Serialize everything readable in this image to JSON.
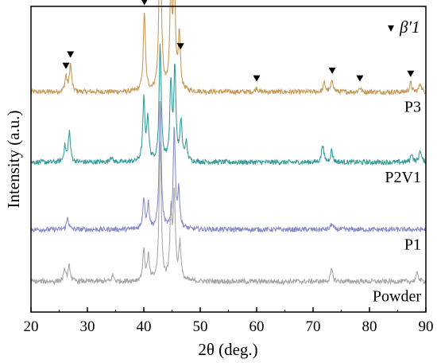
{
  "chart_data": {
    "type": "line",
    "xlabel": "2θ (deg.)",
    "ylabel": "Intensity (a.u.)",
    "xlim": [
      20,
      90
    ],
    "x_ticks": [
      20,
      30,
      40,
      50,
      60,
      70,
      80,
      90
    ],
    "y_ticks_shown": false,
    "grid": false,
    "legend": {
      "placement": "top-right",
      "marker": "▾",
      "label": "β′1"
    },
    "series": [
      {
        "name": "P3",
        "color": "#C89B5A",
        "baseline": 0.72,
        "peaks": [
          [
            26.2,
            0.05
          ],
          [
            27.0,
            0.09
          ],
          [
            40.1,
            0.26
          ],
          [
            42.9,
            0.62
          ],
          [
            44.8,
            0.33
          ],
          [
            45.4,
            0.36
          ],
          [
            46.3,
            0.18
          ],
          [
            60.0,
            0.015
          ],
          [
            72.0,
            0.03
          ],
          [
            73.4,
            0.04
          ],
          [
            78.3,
            0.015
          ],
          [
            87.3,
            0.03
          ],
          [
            89.0,
            0.03
          ]
        ],
        "markers": [
          26.2,
          27.0,
          40.1,
          42.9,
          44.8,
          46.5,
          60.0,
          73.4,
          78.3,
          87.3
        ]
      },
      {
        "name": "P2V1",
        "color": "#3A9C9A",
        "baseline": 0.49,
        "peaks": [
          [
            26.0,
            0.05
          ],
          [
            26.8,
            0.1
          ],
          [
            34.2,
            0.02
          ],
          [
            40.0,
            0.2
          ],
          [
            40.7,
            0.14
          ],
          [
            42.9,
            0.38
          ],
          [
            44.8,
            0.25
          ],
          [
            45.5,
            0.3
          ],
          [
            46.6,
            0.13
          ],
          [
            47.5,
            0.06
          ],
          [
            71.7,
            0.06
          ],
          [
            73.3,
            0.04
          ],
          [
            87.5,
            0.03
          ],
          [
            89.0,
            0.04
          ]
        ],
        "markers": []
      },
      {
        "name": "P1",
        "color": "#8A8EC8",
        "baseline": 0.27,
        "peaks": [
          [
            26.5,
            0.04
          ],
          [
            40.0,
            0.1
          ],
          [
            40.8,
            0.08
          ],
          [
            42.9,
            0.42
          ],
          [
            45.4,
            0.33
          ],
          [
            46.2,
            0.12
          ],
          [
            73.3,
            0.02
          ]
        ],
        "markers": []
      },
      {
        "name": "Powder",
        "color": "#A8A8A8",
        "baseline": 0.1,
        "peaks": [
          [
            26.0,
            0.04
          ],
          [
            26.8,
            0.05
          ],
          [
            34.5,
            0.02
          ],
          [
            40.0,
            0.1
          ],
          [
            40.8,
            0.08
          ],
          [
            42.9,
            0.46
          ],
          [
            44.8,
            0.22
          ],
          [
            45.4,
            0.28
          ],
          [
            46.4,
            0.12
          ],
          [
            73.3,
            0.04
          ],
          [
            88.5,
            0.03
          ]
        ],
        "markers": []
      }
    ]
  }
}
